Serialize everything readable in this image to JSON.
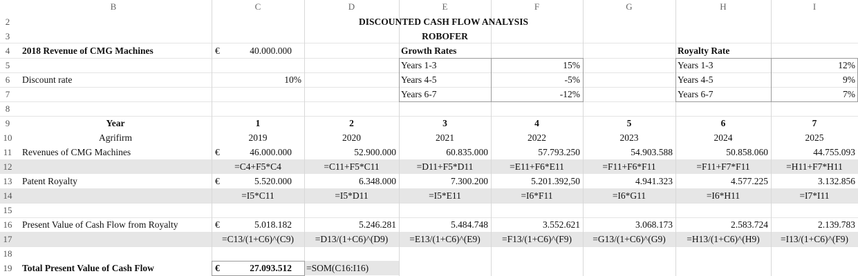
{
  "columns": [
    "B",
    "C",
    "D",
    "E",
    "F",
    "G",
    "H",
    "I"
  ],
  "rows": [
    "2",
    "3",
    "4",
    "5",
    "6",
    "7",
    "8",
    "9",
    "10",
    "11",
    "12",
    "13",
    "14",
    "15",
    "16",
    "17",
    "18",
    "19"
  ],
  "title": "DISCOUNTED CASH FLOW ANALYSIS",
  "subtitle": "ROBOFER",
  "currency_symbol": "€",
  "revenue_label": "2018 Revenue of CMG Machines",
  "revenue_value": "40.000.000",
  "discount_label": "Discount rate",
  "discount_value": "10%",
  "growth": {
    "title": "Growth Rates",
    "items": [
      {
        "label": "Years 1-3",
        "value": "15%"
      },
      {
        "label": "Years 4-5",
        "value": "-5%"
      },
      {
        "label": "Years 6-7",
        "value": "-12%"
      }
    ]
  },
  "royalty": {
    "title": "Royalty Rate",
    "items": [
      {
        "label": "Years 1-3",
        "value": "12%"
      },
      {
        "label": "Years 4-5",
        "value": "9%"
      },
      {
        "label": "Years 6-7",
        "value": "7%"
      }
    ]
  },
  "year_label": "Year",
  "company_label": "Agrifirm",
  "years": [
    "1",
    "2",
    "3",
    "4",
    "5",
    "6",
    "7"
  ],
  "calendar_years": [
    "2019",
    "2020",
    "2021",
    "2022",
    "2023",
    "2024",
    "2025"
  ],
  "revenues": {
    "label": "Revenues of CMG Machines",
    "values": [
      "46.000.000",
      "52.900.000",
      "60.835.000",
      "57.793.250",
      "54.903.588",
      "50.858.060",
      "44.755.093"
    ],
    "formulas": [
      "=C4+F5*C4",
      "=C11+F5*C11",
      "=D11+F5*D11",
      "=E11+F6*E11",
      "=F11+F6*F11",
      "=F11+F7*F11",
      "=H11+F7*H11"
    ]
  },
  "royalty_row": {
    "label": "Patent Royalty",
    "values": [
      "5.520.000",
      "6.348.000",
      "7.300.200",
      "5.201.392,50",
      "4.941.323",
      "4.577.225",
      "3.132.856"
    ],
    "formulas": [
      "=I5*C11",
      "=I5*D11",
      "=I5*E11",
      "=I6*F11",
      "=I6*G11",
      "=I6*H11",
      "=I7*I11"
    ]
  },
  "pv_row": {
    "label": "Present Value of Cash Flow from Royalty",
    "values": [
      "5.018.182",
      "5.246.281",
      "5.484.748",
      "3.552.621",
      "3.068.173",
      "2.583.724",
      "2.139.783"
    ],
    "formulas": [
      "=C13/(1+C6)^(C9)",
      "=D13/(1+C6)^(D9)",
      "=E13/(1+C6)^(E9)",
      "=F13/(1+C6)^(F9)",
      "=G13/(1+C6)^(G9)",
      "=H13/(1+C6)^(H9)",
      "=I13/(1+C6)^(F9)"
    ]
  },
  "total": {
    "label": "Total Present Value of Cash Flow",
    "value": "27.093.512",
    "formula": "=SOM(C16:I16)"
  }
}
